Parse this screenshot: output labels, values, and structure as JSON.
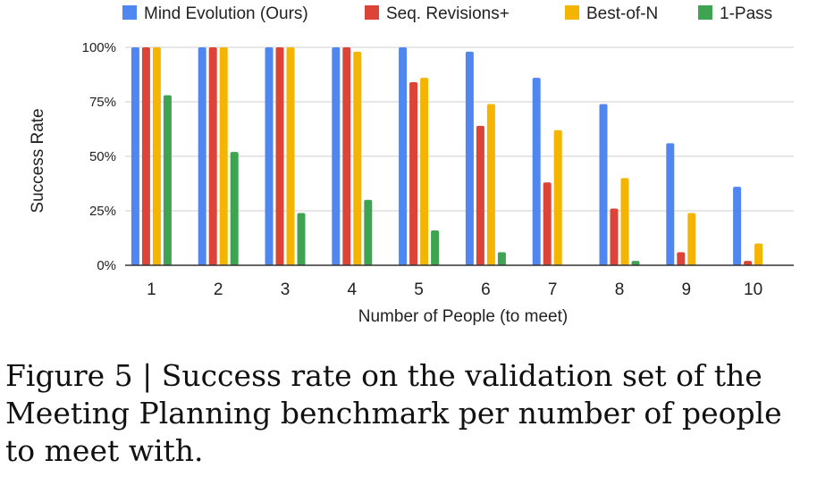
{
  "chart_data": {
    "type": "bar",
    "title": "",
    "xlabel": "Number of People (to meet)",
    "ylabel": "Success Rate",
    "ylim": [
      0,
      100
    ],
    "yticks": [
      "0%",
      "25%",
      "50%",
      "75%",
      "100%"
    ],
    "ytick_values": [
      0,
      25,
      50,
      75,
      100
    ],
    "grid": true,
    "legend_position": "top",
    "categories": [
      "1",
      "2",
      "3",
      "4",
      "5",
      "6",
      "7",
      "8",
      "9",
      "10"
    ],
    "series": [
      {
        "name": "Mind Evolution (Ours)",
        "color": "#4f86f0",
        "values": [
          100,
          100,
          100,
          100,
          100,
          98,
          86,
          74,
          56,
          36
        ]
      },
      {
        "name": "Seq. Revisions+",
        "color": "#db4437",
        "values": [
          100,
          100,
          100,
          100,
          84,
          64,
          38,
          26,
          6,
          2
        ]
      },
      {
        "name": "Best-of-N",
        "color": "#f4b400",
        "values": [
          100,
          100,
          100,
          98,
          86,
          74,
          62,
          40,
          24,
          10
        ]
      },
      {
        "name": "1-Pass",
        "color": "#3fa451",
        "values": [
          78,
          52,
          24,
          30,
          16,
          6,
          0,
          2,
          0,
          0
        ]
      }
    ]
  },
  "caption": "Figure 5 | Success rate on the validation set of the Meeting Planning benchmark per number of people to meet with."
}
